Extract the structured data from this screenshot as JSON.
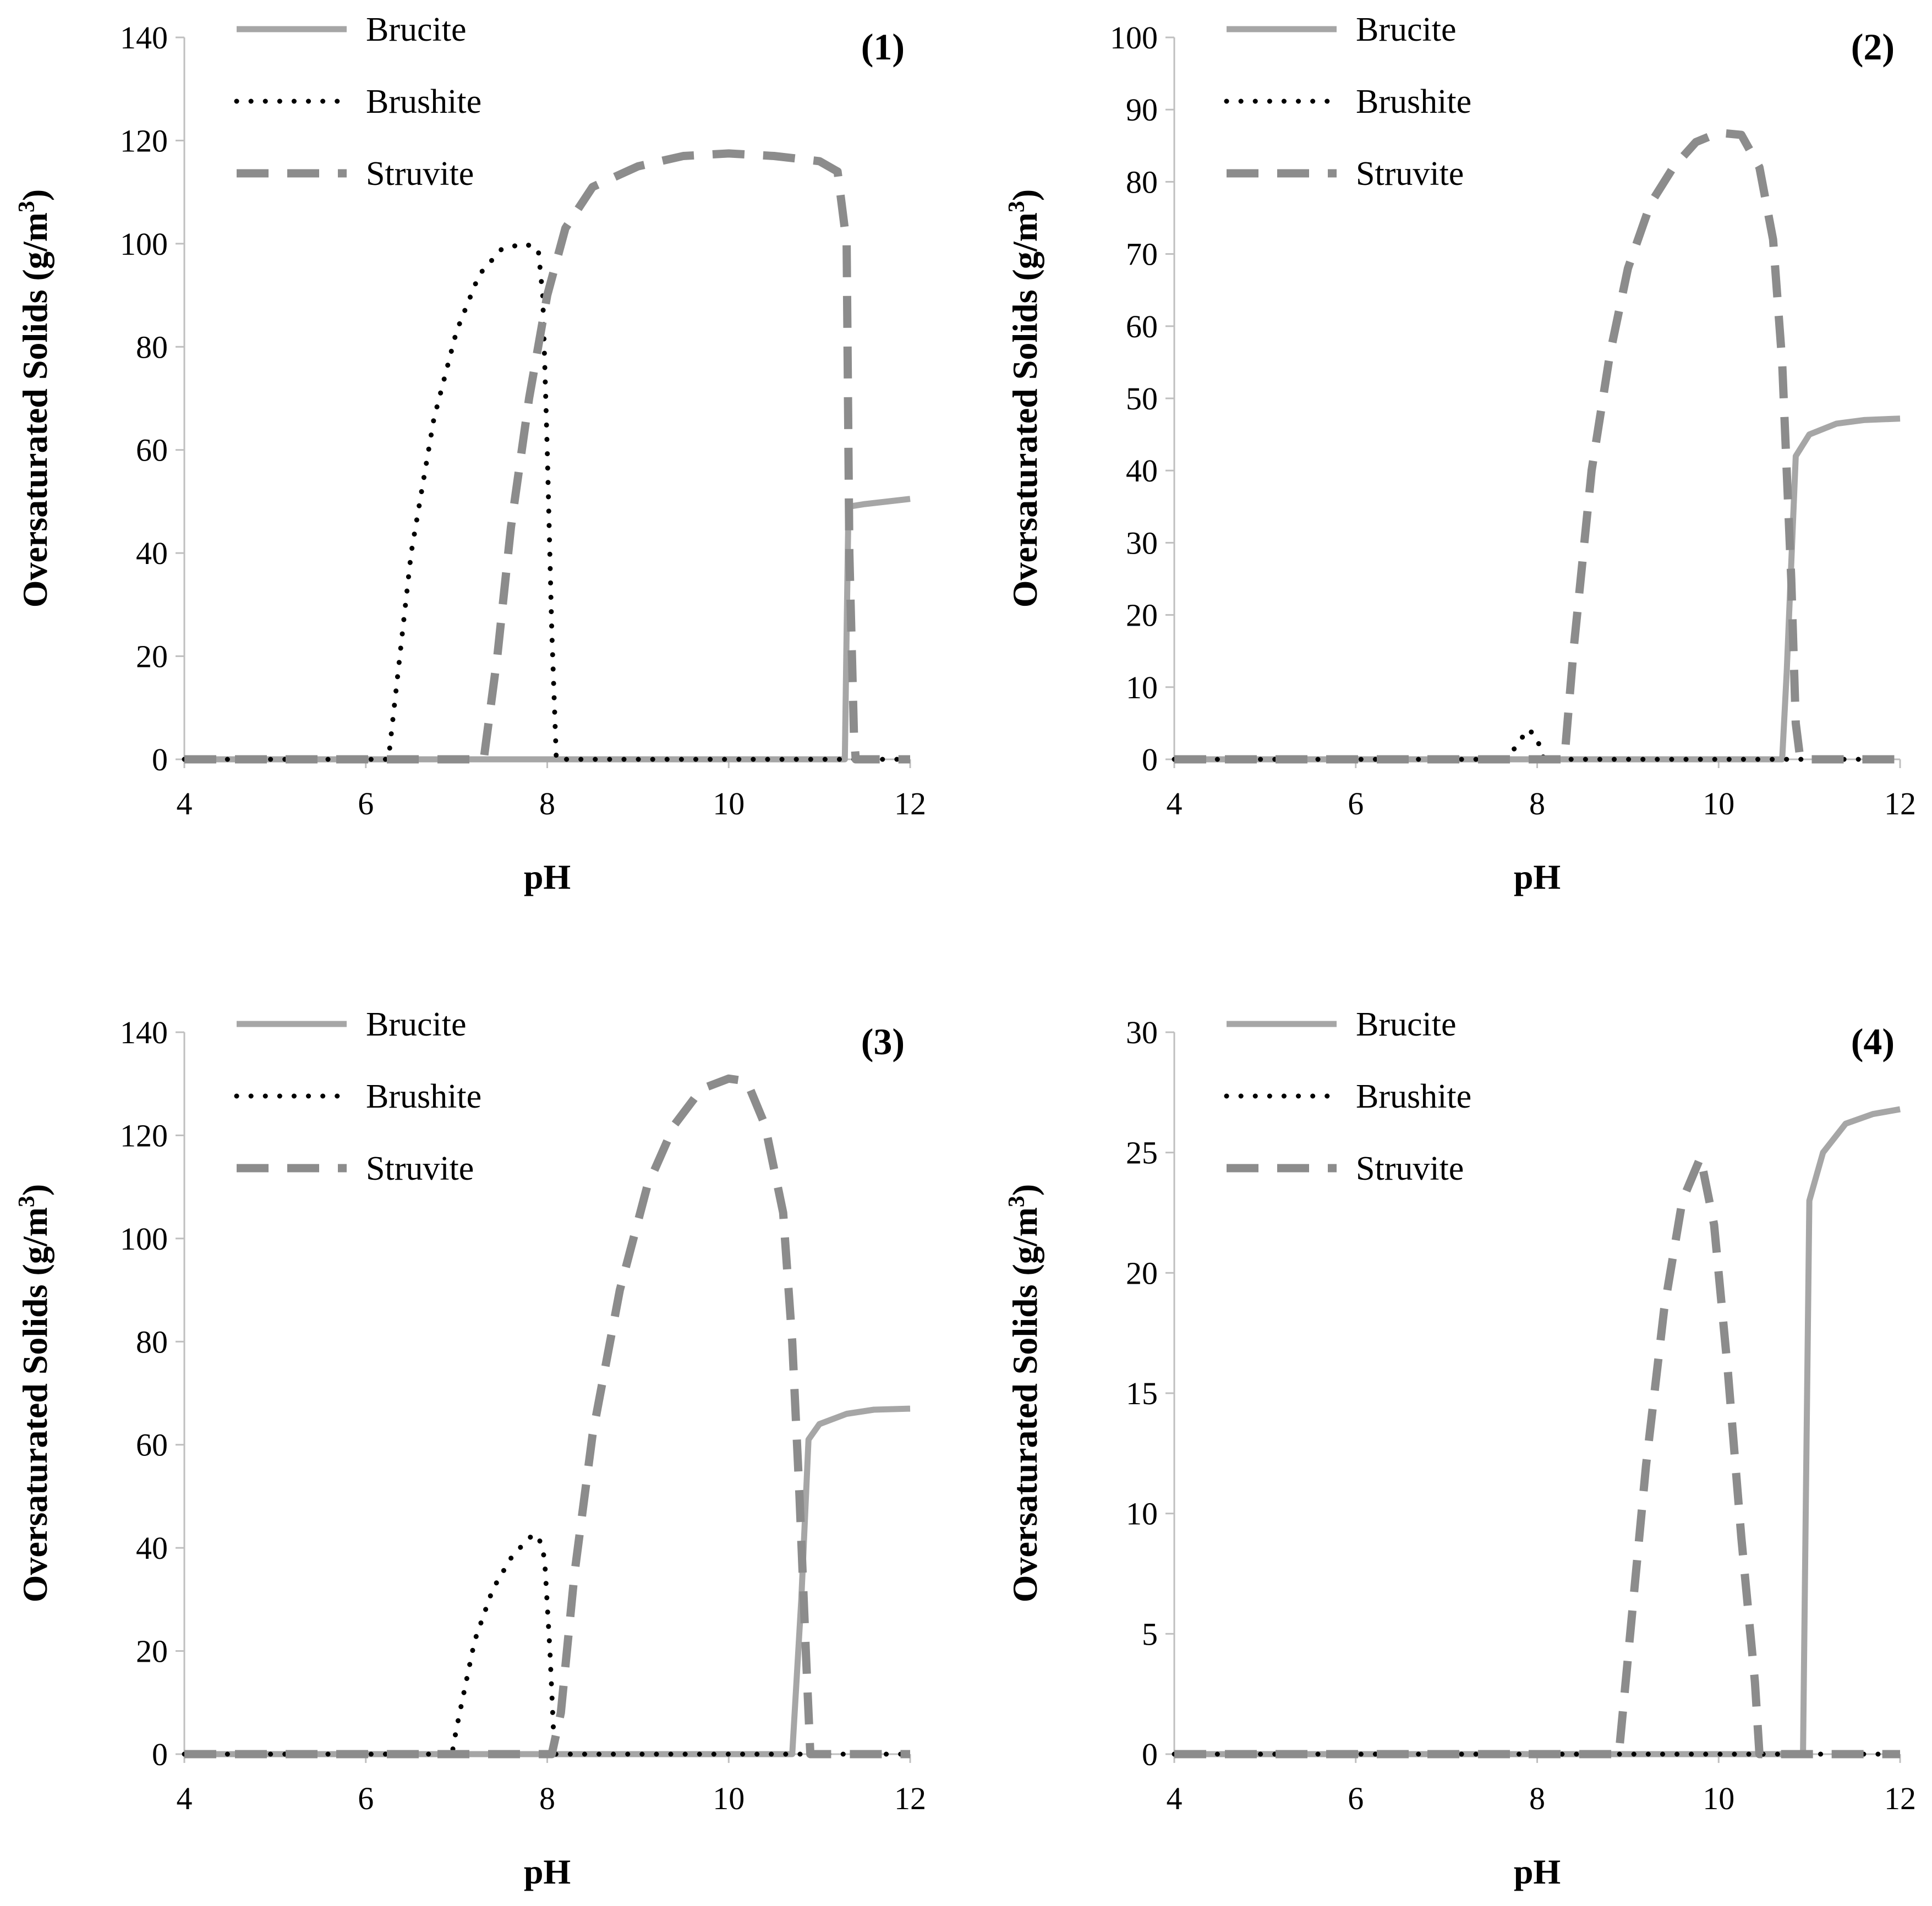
{
  "colors": {
    "brucite": "#a6a6a6",
    "brushite": "#000000",
    "struvite": "#8c8c8c",
    "axis": "#bfbfbf",
    "text": "#000000"
  },
  "chart_data": [
    {
      "type": "line",
      "panel_label": "(1)",
      "xlabel": "pH",
      "ylabel": "Oversaturated Solids (g/m",
      "ylabel_sup": "3",
      "ylabel_close": ")",
      "xlim": [
        4,
        12
      ],
      "ylim": [
        0,
        140
      ],
      "xticks": [
        4,
        6,
        8,
        10,
        12
      ],
      "yticks": [
        0,
        20,
        40,
        60,
        80,
        100,
        120,
        140
      ],
      "legend": [
        "Brucite",
        "Brushite",
        "Struvite"
      ],
      "series": [
        {
          "name": "Brucite",
          "style": "solid",
          "points": [
            [
              4,
              0
            ],
            [
              11.28,
              0
            ],
            [
              11.3,
              25
            ],
            [
              11.32,
              49
            ],
            [
              11.5,
              49.5
            ],
            [
              12,
              50.5
            ]
          ]
        },
        {
          "name": "Brushite",
          "style": "dotted",
          "points": [
            [
              4,
              0
            ],
            [
              6.25,
              0
            ],
            [
              6.3,
              8
            ],
            [
              6.5,
              40
            ],
            [
              6.75,
              66
            ],
            [
              7,
              83
            ],
            [
              7.25,
              94
            ],
            [
              7.5,
              99
            ],
            [
              7.75,
              100
            ],
            [
              7.9,
              99
            ],
            [
              7.95,
              90
            ],
            [
              8.0,
              60
            ],
            [
              8.05,
              25
            ],
            [
              8.1,
              0
            ],
            [
              12,
              0
            ]
          ]
        },
        {
          "name": "Struvite",
          "style": "dashed",
          "points": [
            [
              4,
              0
            ],
            [
              7.3,
              0
            ],
            [
              7.45,
              20
            ],
            [
              7.6,
              45
            ],
            [
              7.8,
              70
            ],
            [
              8.0,
              90
            ],
            [
              8.2,
              103
            ],
            [
              8.5,
              111
            ],
            [
              9.0,
              115
            ],
            [
              9.5,
              117
            ],
            [
              10,
              117.5
            ],
            [
              10.5,
              117
            ],
            [
              11.0,
              116
            ],
            [
              11.2,
              114
            ],
            [
              11.3,
              100
            ],
            [
              11.33,
              40
            ],
            [
              11.38,
              5
            ],
            [
              11.4,
              0
            ],
            [
              12,
              0
            ]
          ]
        }
      ]
    },
    {
      "type": "line",
      "panel_label": "(2)",
      "xlabel": "pH",
      "ylabel": "Oversaturated Solids (g/m",
      "ylabel_sup": "3",
      "ylabel_close": ")",
      "xlim": [
        4,
        12
      ],
      "ylim": [
        0,
        100
      ],
      "xticks": [
        4,
        6,
        8,
        10,
        12
      ],
      "yticks": [
        0,
        10,
        20,
        30,
        40,
        50,
        60,
        70,
        80,
        90,
        100
      ],
      "legend": [
        "Brucite",
        "Brushite",
        "Struvite"
      ],
      "series": [
        {
          "name": "Brucite",
          "style": "solid",
          "points": [
            [
              4,
              0
            ],
            [
              10.7,
              0
            ],
            [
              10.75,
              12
            ],
            [
              10.85,
              42
            ],
            [
              11.0,
              45
            ],
            [
              11.3,
              46.5
            ],
            [
              11.6,
              47
            ],
            [
              12,
              47.2
            ]
          ]
        },
        {
          "name": "Brushite",
          "style": "dotted",
          "points": [
            [
              4,
              0
            ],
            [
              7.65,
              0
            ],
            [
              7.75,
              1.5
            ],
            [
              7.9,
              4.2
            ],
            [
              8.0,
              3
            ],
            [
              8.05,
              0.5
            ],
            [
              8.1,
              0
            ],
            [
              12,
              0
            ]
          ]
        },
        {
          "name": "Struvite",
          "style": "dashed",
          "points": [
            [
              4,
              0
            ],
            [
              8.3,
              0
            ],
            [
              8.4,
              15
            ],
            [
              8.6,
              40
            ],
            [
              8.8,
              56
            ],
            [
              9.0,
              68
            ],
            [
              9.25,
              77
            ],
            [
              9.5,
              82
            ],
            [
              9.75,
              85.5
            ],
            [
              10.0,
              86.8
            ],
            [
              10.25,
              86.5
            ],
            [
              10.45,
              82
            ],
            [
              10.6,
              72
            ],
            [
              10.7,
              55
            ],
            [
              10.8,
              25
            ],
            [
              10.85,
              5
            ],
            [
              10.9,
              0
            ],
            [
              12,
              0
            ]
          ]
        }
      ]
    },
    {
      "type": "line",
      "panel_label": "(3)",
      "xlabel": "pH",
      "ylabel": "Oversaturated Solids (g/m",
      "ylabel_sup": "3",
      "ylabel_close": ")",
      "xlim": [
        4,
        12
      ],
      "ylim": [
        0,
        140
      ],
      "xticks": [
        4,
        6,
        8,
        10,
        12
      ],
      "yticks": [
        0,
        20,
        40,
        60,
        80,
        100,
        120,
        140
      ],
      "legend": [
        "Brucite",
        "Brushite",
        "Struvite"
      ],
      "series": [
        {
          "name": "Brucite",
          "style": "solid",
          "points": [
            [
              4,
              0
            ],
            [
              10.7,
              0
            ],
            [
              10.8,
              30
            ],
            [
              10.88,
              61
            ],
            [
              11.0,
              64
            ],
            [
              11.3,
              66
            ],
            [
              11.6,
              66.8
            ],
            [
              12,
              67
            ]
          ]
        },
        {
          "name": "Brushite",
          "style": "dotted",
          "points": [
            [
              4,
              0
            ],
            [
              6.95,
              0
            ],
            [
              7.0,
              5
            ],
            [
              7.2,
              22
            ],
            [
              7.4,
              32
            ],
            [
              7.6,
              38
            ],
            [
              7.8,
              42
            ],
            [
              7.9,
              42.5
            ],
            [
              7.97,
              38
            ],
            [
              8.03,
              20
            ],
            [
              8.08,
              0
            ],
            [
              12,
              0
            ]
          ]
        },
        {
          "name": "Struvite",
          "style": "dashed",
          "points": [
            [
              4,
              0
            ],
            [
              8.05,
              0
            ],
            [
              8.15,
              8
            ],
            [
              8.3,
              35
            ],
            [
              8.5,
              62
            ],
            [
              8.8,
              90
            ],
            [
              9.1,
              110
            ],
            [
              9.4,
              122
            ],
            [
              9.7,
              129
            ],
            [
              10.0,
              131
            ],
            [
              10.2,
              130.5
            ],
            [
              10.4,
              122
            ],
            [
              10.6,
              105
            ],
            [
              10.7,
              80
            ],
            [
              10.78,
              50
            ],
            [
              10.85,
              20
            ],
            [
              10.9,
              0
            ],
            [
              12,
              0
            ]
          ]
        }
      ]
    },
    {
      "type": "line",
      "panel_label": "(4)",
      "xlabel": "pH",
      "ylabel": "Oversaturated Solids (g/m",
      "ylabel_sup": "3",
      "ylabel_close": ")",
      "xlim": [
        4,
        12
      ],
      "ylim": [
        0,
        30
      ],
      "xticks": [
        4,
        6,
        8,
        10,
        12
      ],
      "yticks": [
        0,
        5,
        10,
        15,
        20,
        25,
        30
      ],
      "legend": [
        "Brucite",
        "Brushite",
        "Struvite"
      ],
      "series": [
        {
          "name": "Brucite",
          "style": "solid",
          "points": [
            [
              4,
              0
            ],
            [
              10.93,
              0
            ],
            [
              10.96,
              10
            ],
            [
              11.0,
              23
            ],
            [
              11.15,
              25
            ],
            [
              11.4,
              26.2
            ],
            [
              11.7,
              26.6
            ],
            [
              12,
              26.8
            ]
          ]
        },
        {
          "name": "Brushite",
          "style": "dotted",
          "points": [
            [
              4,
              0
            ],
            [
              12,
              0
            ]
          ]
        },
        {
          "name": "Struvite",
          "style": "dashed",
          "points": [
            [
              4,
              0
            ],
            [
              8.9,
              0
            ],
            [
              9.0,
              4
            ],
            [
              9.2,
              12
            ],
            [
              9.4,
              18.5
            ],
            [
              9.6,
              23
            ],
            [
              9.8,
              24.8
            ],
            [
              9.95,
              22
            ],
            [
              10.1,
              16
            ],
            [
              10.25,
              9
            ],
            [
              10.4,
              3
            ],
            [
              10.45,
              0
            ],
            [
              12,
              0
            ]
          ]
        }
      ]
    }
  ]
}
